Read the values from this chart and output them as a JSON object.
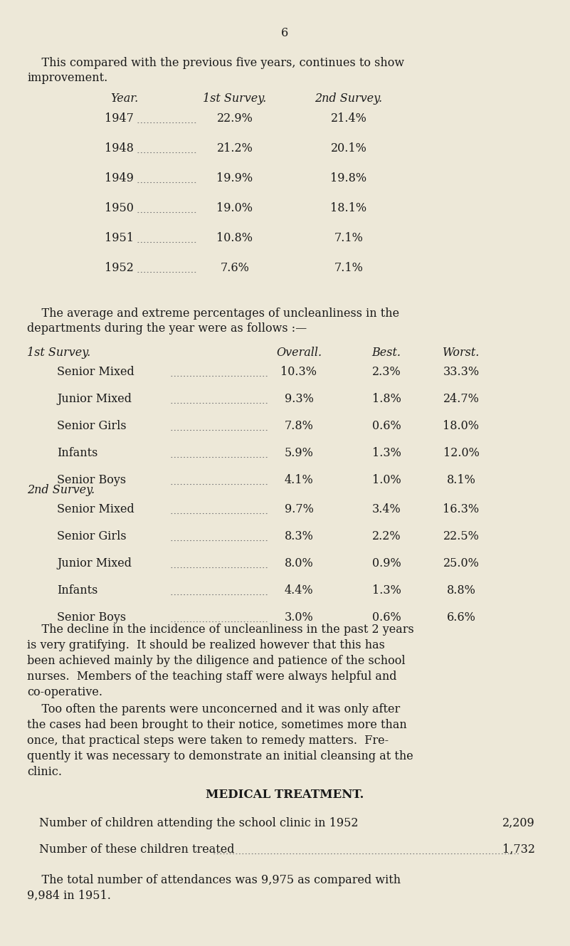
{
  "bg_color": "#ede8d8",
  "text_color": "#1a1a1a",
  "page_number": "6",
  "intro_line1": "    This compared with the previous five years, continues to show",
  "intro_line2": "improvement.",
  "year_table_header": [
    "Year.",
    "1st Survey.",
    "2nd Survey."
  ],
  "year_table": [
    [
      "1947",
      "22.9%",
      "21.4%"
    ],
    [
      "1948",
      "21.2%",
      "20.1%"
    ],
    [
      "1949",
      "19.9%",
      "19.8%"
    ],
    [
      "1950",
      "19.0%",
      "18.1%"
    ],
    [
      "1951",
      "10.8%",
      "7.1%"
    ],
    [
      "1952",
      "7.6%",
      "7.1%"
    ]
  ],
  "avg_line1": "    The average and extreme percentages of uncleanliness in the",
  "avg_line2": "departments during the year were as follows :—",
  "survey1_header": "1st Survey.",
  "survey1_col_headers": [
    "Overall.",
    "Best.",
    "Worst."
  ],
  "survey1_rows": [
    [
      "Senior Mixed",
      "10.3%",
      "2.3%",
      "33.3%"
    ],
    [
      "Junior Mixed",
      "9.3%",
      "1.8%",
      "24.7%"
    ],
    [
      "Senior Girls",
      "7.8%",
      "0.6%",
      "18.0%"
    ],
    [
      "Infants",
      "5.9%",
      "1.3%",
      "12.0%"
    ],
    [
      "Senior Boys",
      "4.1%",
      "1.0%",
      "8.1%"
    ]
  ],
  "survey2_header": "2nd Survey.",
  "survey2_rows": [
    [
      "Senior Mixed",
      "9.7%",
      "3.4%",
      "16.3%"
    ],
    [
      "Senior Girls",
      "8.3%",
      "2.2%",
      "22.5%"
    ],
    [
      "Junior Mixed",
      "8.0%",
      "0.9%",
      "25.0%"
    ],
    [
      "Infants",
      "4.4%",
      "1.3%",
      "8.8%"
    ],
    [
      "Senior Boys",
      "3.0%",
      "0.6%",
      "6.6%"
    ]
  ],
  "para1_lines": [
    "    The decline in the incidence of uncleanliness in the past 2 years",
    "is very gratifying.  It should be realized however that this has",
    "been achieved mainly by the diligence and patience of the school",
    "nurses.  Members of the teaching staff were always helpful and",
    "co-operative."
  ],
  "para2_lines": [
    "    Too often the parents were unconcerned and it was only after",
    "the cases had been brought to their notice, sometimes more than",
    "once, that practical steps were taken to remedy matters.  Fre-",
    "quently it was necessary to demonstrate an initial cleansing at the",
    "clinic."
  ],
  "section_header": "MEDICAL TREATMENT.",
  "med_line1_label": "Number of children attending the school clinic in 1952",
  "med_line1_value": "2,209",
  "med_line2_label": "Number of these children treated",
  "med_line2_value": "1,732",
  "med_para_lines": [
    "    The total number of attendances was 9,975 as compared with",
    "9,984 in 1951."
  ],
  "dot_color": "#777777"
}
